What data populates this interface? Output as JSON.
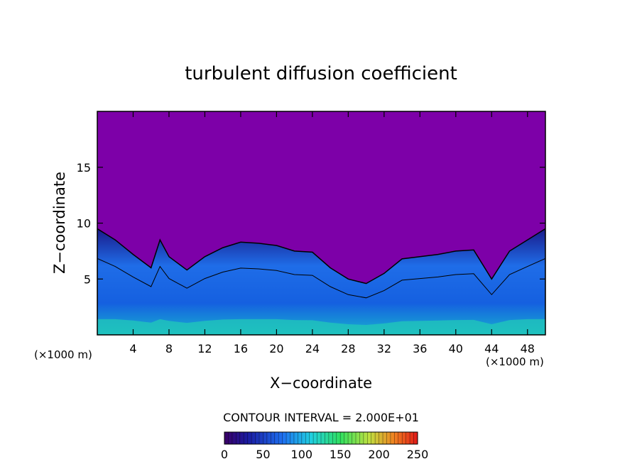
{
  "chart_data": {
    "type": "heatmap",
    "title": "turbulent diffusion coefficient",
    "xlabel": "X−coordinate",
    "ylabel": "Z−coordinate",
    "x_unit_left": "(×1000 m)",
    "x_unit_right": "(×1000 m)",
    "xlim": [
      0,
      50
    ],
    "ylim": [
      0,
      20
    ],
    "x_ticks": [
      "4",
      "8",
      "12",
      "16",
      "20",
      "24",
      "28",
      "32",
      "36",
      "40",
      "44",
      "48"
    ],
    "x_tick_values": [
      4,
      8,
      12,
      16,
      20,
      24,
      28,
      32,
      36,
      40,
      44,
      48
    ],
    "y_ticks": [
      "5",
      "10",
      "15"
    ],
    "y_tick_values": [
      5,
      10,
      15
    ],
    "contour_interval_label": "CONTOUR INTERVAL = 2.000E+01",
    "colorbar": {
      "range": [
        0,
        250
      ],
      "ticks": [
        "0",
        "50",
        "100",
        "150",
        "200",
        "250"
      ],
      "tick_values": [
        0,
        50,
        100,
        150,
        200,
        250
      ]
    },
    "background_color": "#7d00a8",
    "turbulent_layer_top_km": [
      [
        0,
        9.5
      ],
      [
        2,
        8.5
      ],
      [
        4,
        7.2
      ],
      [
        6,
        6.0
      ],
      [
        7,
        8.5
      ],
      [
        8,
        7.0
      ],
      [
        10,
        5.8
      ],
      [
        12,
        7.0
      ],
      [
        14,
        7.8
      ],
      [
        16,
        8.3
      ],
      [
        18,
        8.2
      ],
      [
        20,
        8.0
      ],
      [
        22,
        7.5
      ],
      [
        24,
        7.4
      ],
      [
        26,
        6.0
      ],
      [
        28,
        5.0
      ],
      [
        30,
        4.6
      ],
      [
        32,
        5.5
      ],
      [
        34,
        6.8
      ],
      [
        36,
        7.0
      ],
      [
        38,
        7.2
      ],
      [
        40,
        7.5
      ],
      [
        42,
        7.6
      ],
      [
        44,
        5.0
      ],
      [
        46,
        7.5
      ],
      [
        48,
        8.5
      ],
      [
        50,
        9.5
      ]
    ]
  }
}
